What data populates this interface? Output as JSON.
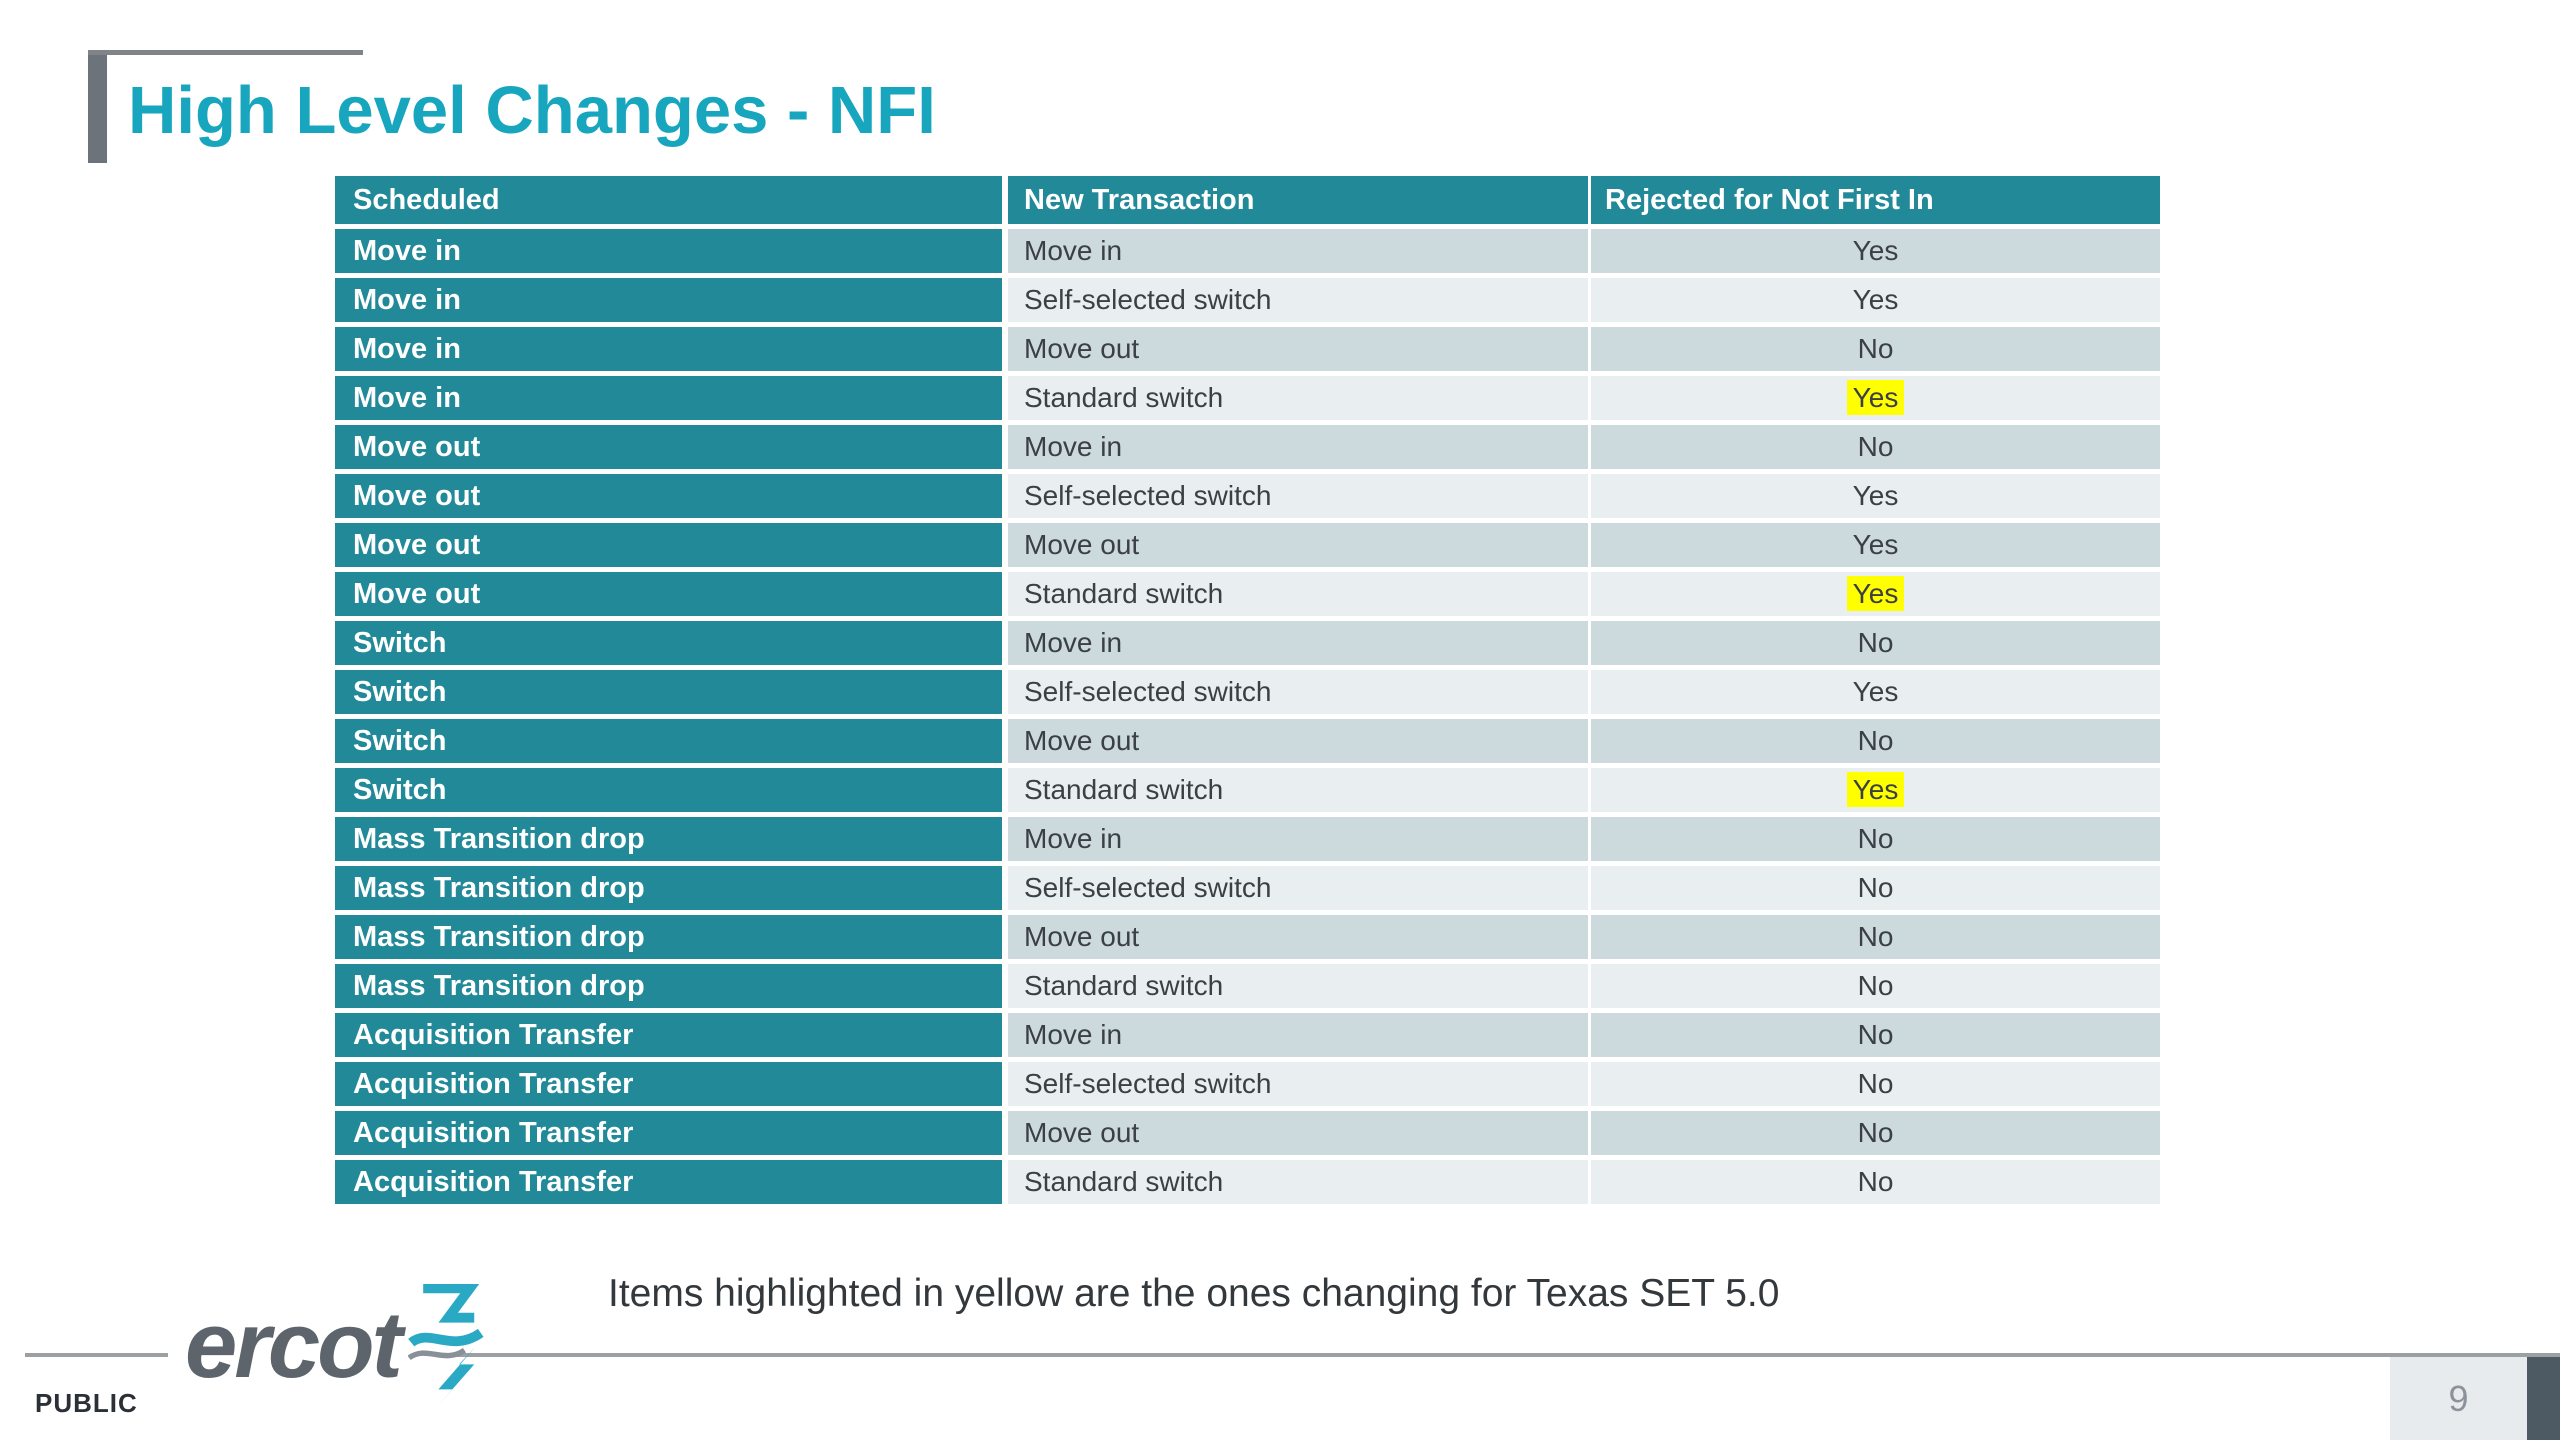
{
  "slide": {
    "title": "High Level Changes - NFI",
    "caption": "Items highlighted in yellow are the ones changing for Texas SET 5.0",
    "footer": {
      "classification_label": "PUBLIC",
      "page_number": "9",
      "logo_text": "ercot"
    }
  },
  "table": {
    "columns": [
      "Scheduled",
      "New Transaction",
      "Rejected for Not First In"
    ],
    "rows": [
      {
        "scheduled": "Move in",
        "new_transaction": "Move in",
        "rejected": "Yes",
        "highlighted": false
      },
      {
        "scheduled": "Move in",
        "new_transaction": "Self-selected switch",
        "rejected": "Yes",
        "highlighted": false
      },
      {
        "scheduled": "Move in",
        "new_transaction": "Move out",
        "rejected": "No",
        "highlighted": false
      },
      {
        "scheduled": "Move in",
        "new_transaction": "Standard switch",
        "rejected": "Yes",
        "highlighted": true
      },
      {
        "scheduled": "Move out",
        "new_transaction": "Move in",
        "rejected": "No",
        "highlighted": false
      },
      {
        "scheduled": "Move out",
        "new_transaction": "Self-selected switch",
        "rejected": "Yes",
        "highlighted": false
      },
      {
        "scheduled": "Move out",
        "new_transaction": "Move out",
        "rejected": "Yes",
        "highlighted": false
      },
      {
        "scheduled": "Move out",
        "new_transaction": "Standard switch",
        "rejected": "Yes",
        "highlighted": true
      },
      {
        "scheduled": "Switch",
        "new_transaction": "Move in",
        "rejected": "No",
        "highlighted": false
      },
      {
        "scheduled": "Switch",
        "new_transaction": "Self-selected switch",
        "rejected": "Yes",
        "highlighted": false
      },
      {
        "scheduled": "Switch",
        "new_transaction": "Move out",
        "rejected": "No",
        "highlighted": false
      },
      {
        "scheduled": "Switch",
        "new_transaction": "Standard switch",
        "rejected": "Yes",
        "highlighted": true
      },
      {
        "scheduled": "Mass Transition drop",
        "new_transaction": "Move in",
        "rejected": "No",
        "highlighted": false
      },
      {
        "scheduled": "Mass Transition drop",
        "new_transaction": "Self-selected switch",
        "rejected": "No",
        "highlighted": false
      },
      {
        "scheduled": "Mass Transition drop",
        "new_transaction": "Move out",
        "rejected": "No",
        "highlighted": false
      },
      {
        "scheduled": "Mass Transition drop",
        "new_transaction": "Standard switch",
        "rejected": "No",
        "highlighted": false
      },
      {
        "scheduled": "Acquisition Transfer",
        "new_transaction": "Move in",
        "rejected": "No",
        "highlighted": false
      },
      {
        "scheduled": "Acquisition Transfer",
        "new_transaction": "Self-selected switch",
        "rejected": "No",
        "highlighted": false
      },
      {
        "scheduled": "Acquisition Transfer",
        "new_transaction": "Move out",
        "rejected": "No",
        "highlighted": false
      },
      {
        "scheduled": "Acquisition Transfer",
        "new_transaction": "Standard switch",
        "rejected": "No",
        "highlighted": false
      }
    ]
  },
  "colors": {
    "title_teal": "#17a6bd",
    "table_teal": "#218998",
    "row_dark": "#ccd9dd",
    "row_light": "#e9eff1",
    "highlight_yellow": "#ffff00",
    "accent_bar_gray": "#6d737a",
    "footer_line_gray": "#9ba0a3",
    "footer_slate": "#4d5963",
    "page_box_gray": "#e8ebed",
    "logo_gray": "#5d646b",
    "logo_bolt_teal": "#2aa9c5"
  }
}
